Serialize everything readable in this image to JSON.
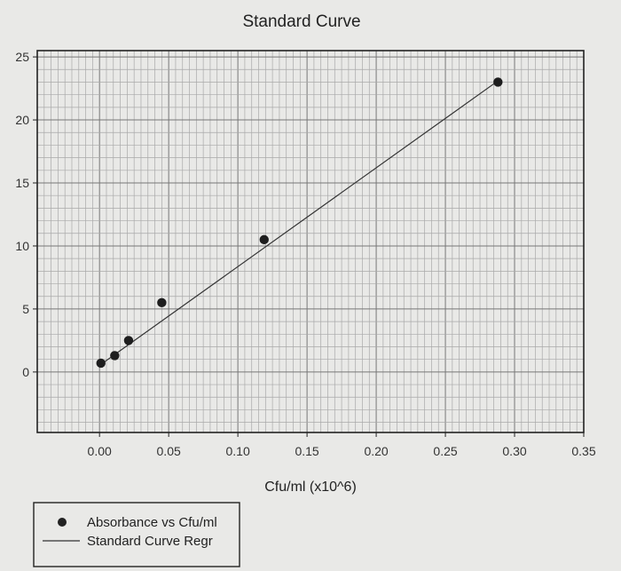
{
  "chart_data": {
    "type": "scatter",
    "title": "Standard Curve",
    "xlabel": "Cfu/ml (x10^6)",
    "ylabel": "",
    "xlim": [
      -0.045,
      0.35
    ],
    "ylim": [
      -4.8,
      25.5
    ],
    "xticks": [
      "0.00",
      "0.05",
      "0.10",
      "0.15",
      "0.20",
      "0.25",
      "0.30",
      "0.35"
    ],
    "yticks": [
      "0",
      "5",
      "10",
      "15",
      "20",
      "25"
    ],
    "grid": true,
    "legend_position": "bottom-left",
    "series": [
      {
        "name": "Absorbance vs Cfu/ml",
        "kind": "points",
        "x": [
          0.001,
          0.011,
          0.021,
          0.045,
          0.119,
          0.288
        ],
        "y": [
          0.7,
          1.3,
          2.5,
          5.5,
          10.5,
          23.0
        ]
      },
      {
        "name": "Standard Curve Regr",
        "kind": "line",
        "x": [
          0.001,
          0.288
        ],
        "y": [
          0.6,
          23.1
        ]
      }
    ]
  }
}
